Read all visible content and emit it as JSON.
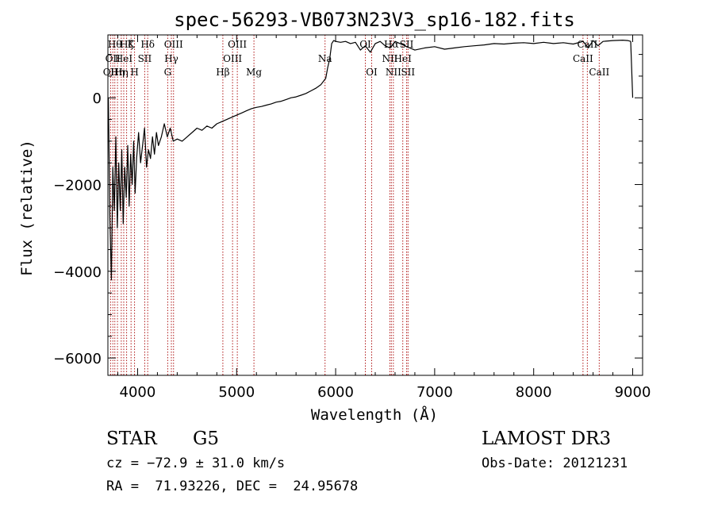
{
  "chart_data": {
    "type": "line",
    "title": "spec-56293-VB073N23V3_sp16-182.fits",
    "xlabel": "Wavelength (Å)",
    "ylabel": "Flux (relative)",
    "xlim": [
      3700,
      9100
    ],
    "ylim": [
      -6400,
      1450
    ],
    "xticks": [
      4000,
      5000,
      6000,
      7000,
      8000,
      9000
    ],
    "xtick_labels": [
      "4000",
      "5000",
      "6000",
      "7000",
      "8000",
      "9000"
    ],
    "yticks": [
      -6000,
      -4000,
      -2000,
      0
    ],
    "ytick_labels": [
      "−6000",
      "−4000",
      "−2000",
      "0"
    ],
    "grid": false,
    "series": [
      {
        "name": "spectrum",
        "color": "#000000",
        "x": [
          3705,
          3720,
          3735,
          3750,
          3765,
          3780,
          3795,
          3810,
          3825,
          3840,
          3855,
          3870,
          3885,
          3900,
          3915,
          3930,
          3945,
          3960,
          3975,
          3990,
          4010,
          4030,
          4050,
          4070,
          4090,
          4110,
          4130,
          4150,
          4170,
          4190,
          4210,
          4240,
          4270,
          4300,
          4330,
          4360,
          4400,
          4450,
          4500,
          4550,
          4600,
          4650,
          4700,
          4750,
          4800,
          4850,
          4900,
          4950,
          5000,
          5050,
          5100,
          5150,
          5200,
          5250,
          5300,
          5350,
          5400,
          5450,
          5500,
          5550,
          5600,
          5650,
          5700,
          5750,
          5800,
          5850,
          5900,
          5920,
          5940,
          5960,
          5980,
          6000,
          6050,
          6100,
          6150,
          6200,
          6250,
          6300,
          6350,
          6400,
          6450,
          6500,
          6550,
          6600,
          6650,
          6700,
          6750,
          6800,
          6900,
          7000,
          7100,
          7200,
          7300,
          7400,
          7500,
          7600,
          7700,
          7800,
          7900,
          8000,
          8100,
          8200,
          8300,
          8400,
          8500,
          8550,
          8600,
          8650,
          8700,
          8800,
          8900,
          8950,
          8980,
          9000
        ],
        "y": [
          0,
          -2800,
          -4200,
          -1600,
          -2600,
          -900,
          -3000,
          -1500,
          -2600,
          -1200,
          -2900,
          -1600,
          -2300,
          -1100,
          -2500,
          -1300,
          -2000,
          -1000,
          -2200,
          -1400,
          -800,
          -1500,
          -1100,
          -700,
          -1600,
          -1200,
          -1400,
          -900,
          -1300,
          -800,
          -1100,
          -900,
          -600,
          -900,
          -700,
          -1000,
          -950,
          -1000,
          -900,
          -800,
          -700,
          -750,
          -650,
          -700,
          -600,
          -550,
          -500,
          -450,
          -400,
          -350,
          -300,
          -250,
          -220,
          -200,
          -170,
          -140,
          -100,
          -80,
          -40,
          0,
          20,
          60,
          100,
          160,
          220,
          300,
          450,
          700,
          900,
          1250,
          1320,
          1300,
          1280,
          1300,
          1250,
          1280,
          1100,
          1200,
          1050,
          1250,
          1300,
          1200,
          1150,
          1300,
          1250,
          1200,
          1150,
          1100,
          1150,
          1180,
          1120,
          1150,
          1180,
          1200,
          1220,
          1250,
          1240,
          1260,
          1270,
          1250,
          1280,
          1250,
          1270,
          1240,
          1300,
          1150,
          1320,
          1200,
          1300,
          1320,
          1330,
          1320,
          1300,
          0
        ]
      }
    ],
    "spectral_lines": [
      {
        "wavelength": 3727,
        "label": "OII",
        "row": 2
      },
      {
        "wavelength": 3750,
        "label": "OII",
        "row": 1
      },
      {
        "wavelength": 3770,
        "label": "Hθ",
        "row": 0
      },
      {
        "wavelength": 3797,
        "label": "Hη",
        "row": 2
      },
      {
        "wavelength": 3835,
        "label": "Hη",
        "row": 2
      },
      {
        "wavelength": 3860,
        "label": "HeI",
        "row": 1
      },
      {
        "wavelength": 3889,
        "label": "Hζ",
        "row": 0
      },
      {
        "wavelength": 3934,
        "label": "K",
        "row": 0
      },
      {
        "wavelength": 3969,
        "label": "H",
        "row": 2
      },
      {
        "wavelength": 4072,
        "label": "SII",
        "row": 1
      },
      {
        "wavelength": 4102,
        "label": "Hδ",
        "row": 0
      },
      {
        "wavelength": 4304,
        "label": "G",
        "row": 2
      },
      {
        "wavelength": 4341,
        "label": "Hγ",
        "row": 1
      },
      {
        "wavelength": 4363,
        "label": "OIII",
        "row": 0
      },
      {
        "wavelength": 4861,
        "label": "Hβ",
        "row": 2
      },
      {
        "wavelength": 4959,
        "label": "OIII",
        "row": 1
      },
      {
        "wavelength": 5007,
        "label": "OIII",
        "row": 0
      },
      {
        "wavelength": 5175,
        "label": "Mg",
        "row": 2
      },
      {
        "wavelength": 5893,
        "label": "Na",
        "row": 1
      },
      {
        "wavelength": 6300,
        "label": "OI",
        "row": 0
      },
      {
        "wavelength": 6364,
        "label": "OI",
        "row": 2
      },
      {
        "wavelength": 6548,
        "label": "NII",
        "row": 1
      },
      {
        "wavelength": 6563,
        "label": "Hα",
        "row": 0
      },
      {
        "wavelength": 6583,
        "label": "NII",
        "row": 2
      },
      {
        "wavelength": 6678,
        "label": "HeI",
        "row": 1
      },
      {
        "wavelength": 6717,
        "label": "SII",
        "row": 0
      },
      {
        "wavelength": 6731,
        "label": "SII",
        "row": 2
      },
      {
        "wavelength": 8498,
        "label": "CaII",
        "row": 1
      },
      {
        "wavelength": 8542,
        "label": "CaII",
        "row": 0
      },
      {
        "wavelength": 8662,
        "label": "CaII",
        "row": 2
      }
    ]
  },
  "info": {
    "object_class": "STAR",
    "subclass": "G5",
    "survey": "LAMOST DR3",
    "cz": "cz = −72.9 ± 31.0 km/s",
    "obs_date": "Obs-Date: 20121231",
    "coords": "RA =  71.93226, DEC =  24.95678"
  },
  "colors": {
    "spectrum": "#000000",
    "line_marker": "#b01818",
    "axes": "#000000"
  }
}
